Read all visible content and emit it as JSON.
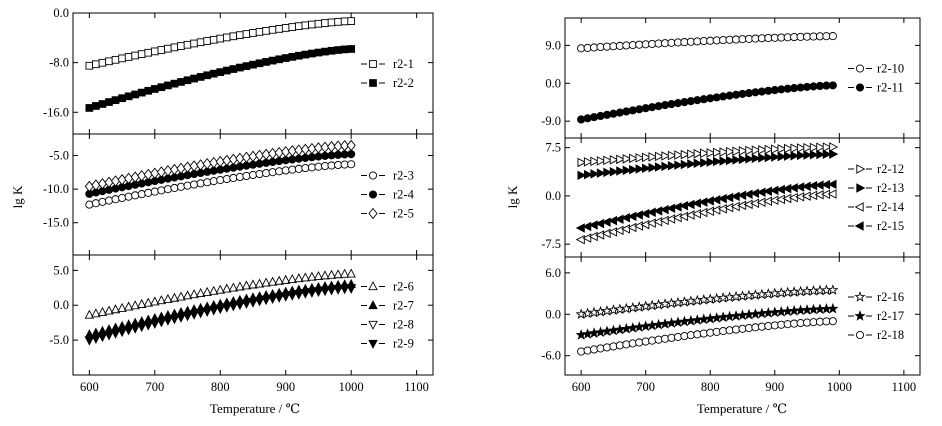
{
  "chart_data": [
    {
      "type": "scatter",
      "xlabel": "Temperature / ℃",
      "ylabel": "lg K",
      "x_ticks": [
        600,
        700,
        800,
        900,
        1000,
        1100
      ],
      "xlim": [
        575,
        1125
      ],
      "subplots": [
        {
          "ylim": [
            -19.5,
            0.0
          ],
          "y_ticks": [
            "0.0",
            "-8.0",
            "-16.0"
          ],
          "y_tick_values": [
            0,
            -8,
            -16
          ],
          "series": [
            {
              "name": "r2-1",
              "marker": "square-open",
              "x_start": 600,
              "x_end": 1000,
              "step": 10,
              "y_start": -8.5,
              "y_end": -1.3
            },
            {
              "name": "r2-2",
              "marker": "square-filled",
              "x_start": 600,
              "x_end": 1000,
              "step": 10,
              "y_start": -15.3,
              "y_end": -5.8
            }
          ]
        },
        {
          "ylim": [
            -19.8,
            -1.8
          ],
          "y_ticks": [
            "-5.0",
            "-10.0",
            "-15.0"
          ],
          "y_tick_values": [
            -5,
            -10,
            -15
          ],
          "series": [
            {
              "name": "r2-3",
              "marker": "circle-open",
              "x_start": 600,
              "x_end": 1000,
              "step": 10,
              "y_start": -12.3,
              "y_end": -6.3
            },
            {
              "name": "r2-4",
              "marker": "circle-filled",
              "x_start": 600,
              "x_end": 1000,
              "step": 10,
              "y_start": -10.7,
              "y_end": -4.8
            },
            {
              "name": "r2-5",
              "marker": "diamond-open",
              "x_start": 600,
              "x_end": 1000,
              "step": 10,
              "y_start": -9.6,
              "y_end": -3.5
            }
          ]
        },
        {
          "ylim": [
            -10.0,
            7.2
          ],
          "y_ticks": [
            "5.0",
            "0.0",
            "-5.0"
          ],
          "y_tick_values": [
            5,
            0,
            -5
          ],
          "series": [
            {
              "name": "r2-6",
              "marker": "triangle-up-open",
              "x_start": 600,
              "x_end": 1000,
              "step": 10,
              "y_start": -1.4,
              "y_end": 4.5
            },
            {
              "name": "r2-7",
              "marker": "triangle-up-filled",
              "x_start": 600,
              "x_end": 1000,
              "step": 10,
              "y_start": -4.2,
              "y_end": 3.0
            },
            {
              "name": "r2-8",
              "marker": "triangle-down-open",
              "x_start": 600,
              "x_end": 1000,
              "step": 10,
              "y_start": -5.0,
              "y_end": 2.4
            },
            {
              "name": "r2-9",
              "marker": "triangle-down-filled",
              "x_start": 600,
              "x_end": 1000,
              "step": 10,
              "y_start": -5.0,
              "y_end": 2.5
            }
          ]
        }
      ]
    },
    {
      "type": "scatter",
      "xlabel": "Temperature / ℃",
      "ylabel": "lg K",
      "x_ticks": [
        600,
        700,
        800,
        900,
        1000,
        1100
      ],
      "xlim": [
        575,
        1125
      ],
      "subplots": [
        {
          "ylim": [
            -13.0,
            15.5
          ],
          "y_ticks": [
            "9.0",
            "0.0",
            "-9.0"
          ],
          "y_tick_values": [
            9,
            0,
            -9
          ],
          "series": [
            {
              "name": "r2-10",
              "marker": "circle-open",
              "x_start": 600,
              "x_end": 990,
              "step": 10,
              "y_start": 8.3,
              "y_end": 11.2
            },
            {
              "name": "r2-11",
              "marker": "circle-filled",
              "x_start": 600,
              "x_end": 990,
              "step": 10,
              "y_start": -8.6,
              "y_end": -0.5
            }
          ]
        },
        {
          "ylim": [
            -9.5,
            9.0
          ],
          "y_ticks": [
            "7.5",
            "0.0",
            "-7.5"
          ],
          "y_tick_values": [
            7.5,
            0,
            -7.5
          ],
          "series": [
            {
              "name": "r2-12",
              "marker": "triangle-right-open",
              "x_start": 600,
              "x_end": 990,
              "step": 10,
              "y_start": 5.2,
              "y_end": 7.6
            },
            {
              "name": "r2-13",
              "marker": "triangle-right-filled",
              "x_start": 600,
              "x_end": 990,
              "step": 10,
              "y_start": 3.2,
              "y_end": 6.5
            },
            {
              "name": "r2-14",
              "marker": "triangle-left-open",
              "x_start": 600,
              "x_end": 990,
              "step": 10,
              "y_start": -6.8,
              "y_end": 0.3
            },
            {
              "name": "r2-15",
              "marker": "triangle-left-filled",
              "x_start": 600,
              "x_end": 990,
              "step": 10,
              "y_start": -5.0,
              "y_end": 1.8
            }
          ]
        },
        {
          "ylim": [
            -8.8,
            8.3
          ],
          "y_ticks": [
            "6.0",
            "0.0",
            "-6.0"
          ],
          "y_tick_values": [
            6,
            0,
            -6
          ],
          "series": [
            {
              "name": "r2-16",
              "marker": "star-open",
              "x_start": 600,
              "x_end": 990,
              "step": 10,
              "y_start": 0.0,
              "y_end": 3.5
            },
            {
              "name": "r2-17",
              "marker": "star-filled",
              "x_start": 600,
              "x_end": 990,
              "step": 10,
              "y_start": -3.0,
              "y_end": 0.8
            },
            {
              "name": "r2-18",
              "marker": "circle-open",
              "x_start": 600,
              "x_end": 990,
              "step": 10,
              "y_start": -5.4,
              "y_end": -1.0
            }
          ]
        }
      ]
    }
  ]
}
